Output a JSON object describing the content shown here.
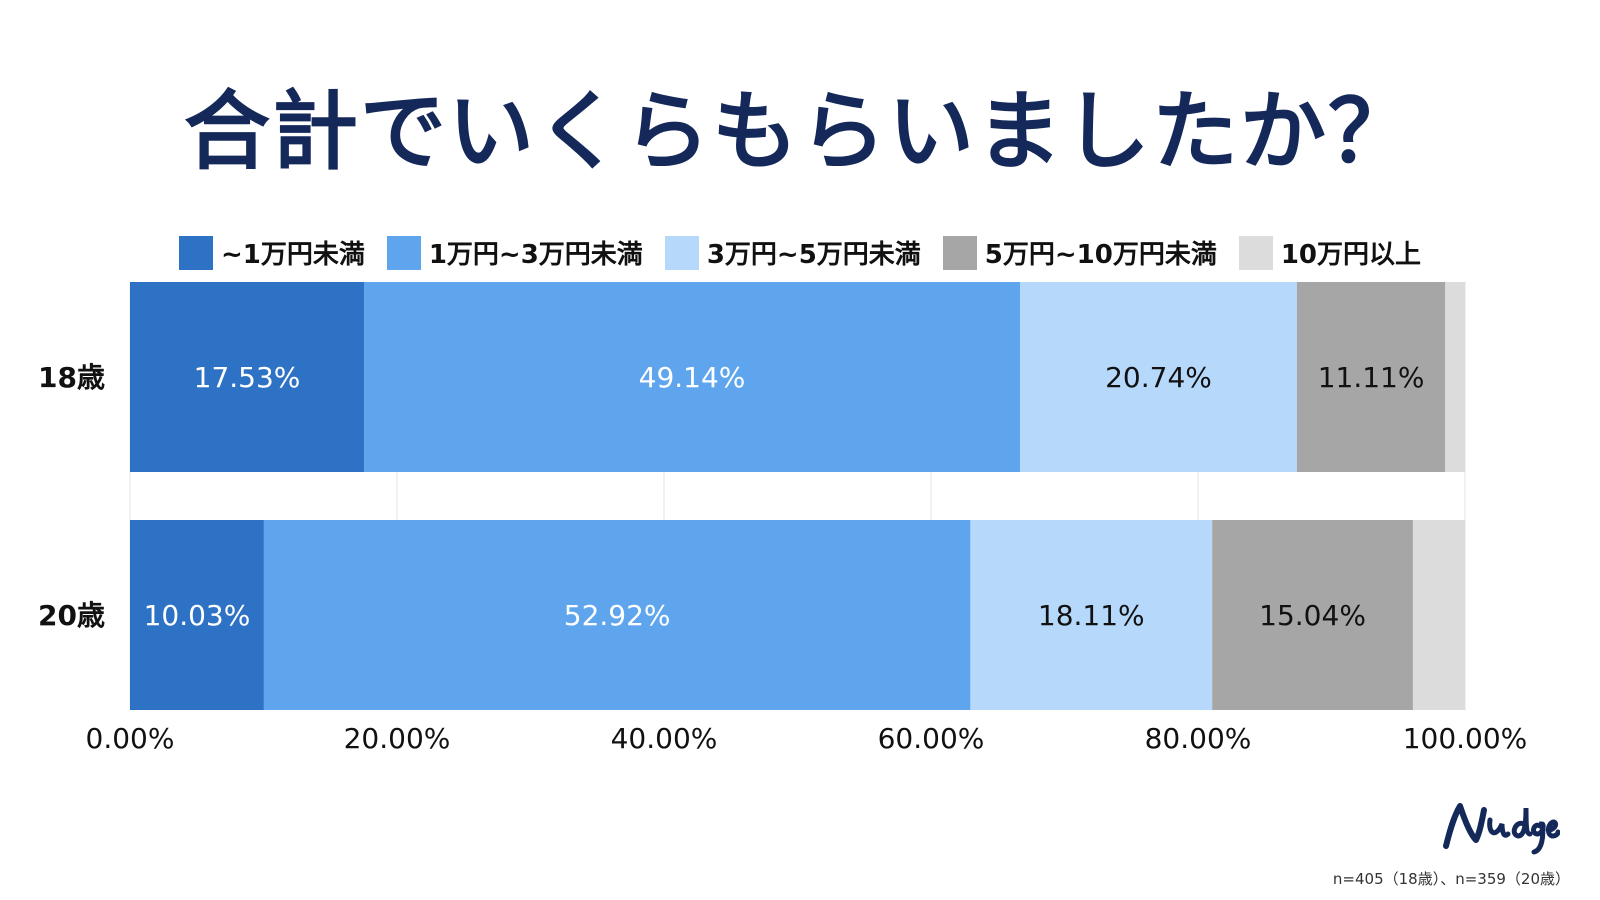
{
  "chart_data": {
    "type": "bar",
    "orientation": "horizontal",
    "stacked": true,
    "title": "合計でいくらもらいましたか？",
    "categories": [
      "18歳",
      "20歳"
    ],
    "series": [
      {
        "name": "~1万円未満",
        "color": "#2d72c4",
        "values": [
          17.53,
          10.03
        ],
        "labels": [
          "17.53%",
          "10.03%"
        ],
        "label_color": "#ffffff"
      },
      {
        "name": "1万円~3万円未満",
        "color": "#5ea5ee",
        "values": [
          49.14,
          52.92
        ],
        "labels": [
          "49.14%",
          "52.92%"
        ],
        "label_color": "#ffffff"
      },
      {
        "name": "3万円~5万円未満",
        "color": "#b6d8fb",
        "values": [
          20.74,
          18.11
        ],
        "labels": [
          "20.74%",
          "18.11%"
        ],
        "label_color": "#111111"
      },
      {
        "name": "5万円~10万円未満",
        "color": "#a6a6a6",
        "values": [
          11.11,
          15.04
        ],
        "labels": [
          "11.11%",
          "15.04%"
        ],
        "label_color": "#111111"
      },
      {
        "name": "10万円以上",
        "color": "#dcdcdc",
        "values": [
          1.48,
          3.9
        ],
        "labels": [
          "",
          ""
        ],
        "label_color": "#111111"
      }
    ],
    "xlim": [
      0,
      100
    ],
    "xticks": [
      0,
      20,
      40,
      60,
      80,
      100
    ],
    "xtick_labels": [
      "0.00%",
      "20.00%",
      "40.00%",
      "60.00%",
      "80.00%",
      "100.00%"
    ],
    "grid": true,
    "legend_position": "top"
  },
  "footnote": "n=405（18歳）、n=359（20歳）",
  "logo_text": "nudge",
  "colors": {
    "title": "#14285a",
    "logo": "#14285a"
  }
}
